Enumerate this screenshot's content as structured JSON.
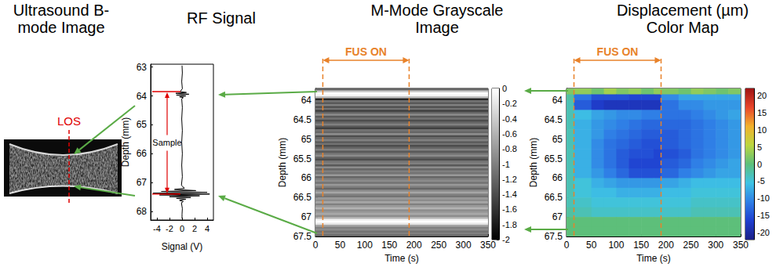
{
  "chart_data": [
    {
      "type": "image",
      "title": "Ultrasound B-mode Image",
      "annotation": "LOS"
    },
    {
      "type": "line",
      "title": "RF Signal",
      "xlabel": "Signal (V)",
      "ylabel": "Depth (mm)",
      "xlim": [
        -5,
        5
      ],
      "xticks": [
        -4,
        -2,
        0,
        2,
        4
      ],
      "ylim": [
        62.9,
        68.3
      ],
      "yticks": [
        63,
        64,
        65,
        66,
        67,
        68
      ],
      "color": "#000000",
      "grid": false,
      "x": [
        0,
        0.05,
        -0.05,
        0.05,
        -0.3,
        0.7,
        -1.0,
        1.1,
        -0.9,
        0.6,
        -0.4,
        0.2,
        -0.05,
        0.05,
        -0.05,
        0.05,
        -0.05,
        0.05,
        -0.05,
        0.05,
        -0.1,
        0.4,
        -1.2,
        2.2,
        -3.3,
        4.0,
        -4.6,
        4.4,
        -3.6,
        2.8,
        -2.0,
        1.4,
        -0.9,
        0.6,
        -0.4,
        0.2,
        -0.1,
        0.05,
        0,
        0
      ],
      "y": [
        62.95,
        63.2,
        63.5,
        63.75,
        63.85,
        63.88,
        63.91,
        63.94,
        63.97,
        64.0,
        64.03,
        64.06,
        64.1,
        64.4,
        64.8,
        65.2,
        65.6,
        66.0,
        66.4,
        66.8,
        67.1,
        67.2,
        67.24,
        67.28,
        67.31,
        67.34,
        67.37,
        67.4,
        67.43,
        67.46,
        67.49,
        67.52,
        67.55,
        67.58,
        67.62,
        67.66,
        67.7,
        67.9,
        68.1,
        68.25
      ],
      "sample": {
        "label": "Sample",
        "from": 63.85,
        "to": 67.4
      }
    },
    {
      "type": "heatmap",
      "title": "M-Mode Grayscale Image",
      "color": "gray",
      "grid": false,
      "xlabel": "Time (s)",
      "ylabel": "Depth (mm)",
      "xlim": [
        0,
        350
      ],
      "xticks": [
        0,
        50,
        100,
        150,
        200,
        250,
        300,
        350
      ],
      "ylim": [
        63.7,
        67.5
      ],
      "yticks": [
        64,
        64.5,
        65,
        65.5,
        66,
        66.5,
        67,
        67.5
      ],
      "time_edges": [
        0,
        350
      ],
      "depth_edges": [
        63.7,
        63.75,
        63.8,
        63.85,
        63.9,
        63.95,
        64,
        64.05,
        64.1,
        64.15,
        64.2,
        64.25,
        64.3,
        64.35,
        64.4,
        64.45,
        64.5,
        64.55,
        64.6,
        64.65,
        64.7,
        64.75,
        64.8,
        64.85,
        64.9,
        64.95,
        65,
        65.05,
        65.1,
        65.15,
        65.2,
        65.25,
        65.3,
        65.35,
        65.4,
        65.45,
        65.5,
        65.55,
        65.6,
        65.65,
        65.7,
        65.75,
        65.8,
        65.85,
        65.9,
        65.95,
        66,
        66.05,
        66.1,
        66.15,
        66.2,
        66.25,
        66.3,
        66.35,
        66.4,
        66.45,
        66.5,
        66.55,
        66.6,
        66.65,
        66.7,
        66.75,
        66.8,
        66.85,
        66.9,
        66.95,
        67,
        67.05,
        67.1,
        67.15,
        67.2,
        67.25,
        67.3,
        67.35,
        67.4,
        67.45,
        67.5
      ],
      "cells": [
        [
          -1.2
        ],
        [
          -0.4
        ],
        [
          0
        ],
        [
          -0.1
        ],
        [
          -0.5
        ],
        [
          -1.7
        ],
        [
          -1.1
        ],
        [
          -1.3
        ],
        [
          -1.0
        ],
        [
          -1.4
        ],
        [
          -1.1
        ],
        [
          -1.5
        ],
        [
          -1.2
        ],
        [
          -0.9
        ],
        [
          -1.3
        ],
        [
          -1.1
        ],
        [
          -1.4
        ],
        [
          -1.2
        ],
        [
          -1.0
        ],
        [
          -1.3
        ],
        [
          -1.5
        ],
        [
          -1.1
        ],
        [
          -1.2
        ],
        [
          -0.9
        ],
        [
          -1.4
        ],
        [
          -1.2
        ],
        [
          -1.0
        ],
        [
          -1.3
        ],
        [
          -1.1
        ],
        [
          -1.4
        ],
        [
          -1.2
        ],
        [
          -1.0
        ],
        [
          -1.3
        ],
        [
          -1.1
        ],
        [
          -0.9
        ],
        [
          -1.2
        ],
        [
          -1.4
        ],
        [
          -1.1
        ],
        [
          -1.0
        ],
        [
          -1.3
        ],
        [
          -0.9
        ],
        [
          -1.2
        ],
        [
          -1.0
        ],
        [
          -1.1
        ],
        [
          -0.8
        ],
        [
          -1.2
        ],
        [
          -1.0
        ],
        [
          -0.9
        ],
        [
          -1.1
        ],
        [
          -0.8
        ],
        [
          -1.0
        ],
        [
          -1.2
        ],
        [
          -0.9
        ],
        [
          -0.7
        ],
        [
          -1.0
        ],
        [
          -1.1
        ],
        [
          -0.8
        ],
        [
          -0.9
        ],
        [
          -0.7
        ],
        [
          -1.0
        ],
        [
          -0.8
        ],
        [
          -0.6
        ],
        [
          -0.9
        ],
        [
          -0.8
        ],
        [
          -0.7
        ],
        [
          -0.9
        ],
        [
          -0.6
        ],
        [
          -0.1
        ],
        [
          0
        ],
        [
          -0.2
        ],
        [
          -0.7
        ],
        [
          -1.0
        ],
        [
          -0.9
        ],
        [
          -1.1
        ],
        [
          -1.0
        ],
        [
          -1.2
        ]
      ],
      "colorbar": {
        "range": [
          -2,
          0
        ],
        "ticks": [
          0,
          -0.2,
          -0.4,
          -0.6,
          -0.8,
          -1,
          -1.2,
          -1.4,
          -1.6,
          -1.8,
          -2
        ]
      },
      "annotation": {
        "label": "FUS ON",
        "start": 15,
        "end": 190
      }
    },
    {
      "type": "heatmap",
      "title": "Displacement (µm) Color Map",
      "color": "jet",
      "grid": false,
      "xlabel": "Time (s)",
      "ylabel": "Depth (mm)",
      "xlim": [
        0,
        350
      ],
      "xticks": [
        0,
        50,
        100,
        150,
        200,
        250,
        300,
        350
      ],
      "ylim": [
        63.7,
        67.5
      ],
      "yticks": [
        64,
        64.5,
        65,
        65.5,
        66,
        66.5,
        67,
        67.5
      ],
      "time_edges": [
        0,
        15,
        50,
        75,
        100,
        125,
        150,
        175,
        190,
        225,
        250,
        275,
        300,
        325,
        350
      ],
      "depth_edges": [
        63.7,
        63.85,
        64.0,
        64.25,
        64.5,
        64.75,
        65.0,
        65.25,
        65.5,
        65.75,
        66.0,
        66.25,
        66.5,
        66.75,
        67.0,
        67.25,
        67.5
      ],
      "cells": [
        [
          2,
          3,
          1,
          4,
          2,
          3,
          1,
          3,
          2,
          1,
          3,
          2,
          1,
          2
        ],
        [
          -2,
          -12,
          -15,
          -15,
          -15,
          -16,
          -16,
          -16,
          -10,
          -8,
          -8,
          -8,
          -8,
          -8
        ],
        [
          -3,
          -14,
          -17,
          -18,
          -18,
          -18,
          -18,
          -18,
          -12,
          -10,
          -10,
          -9,
          -9,
          -9
        ],
        [
          -3,
          -6,
          -8,
          -9,
          -10,
          -10,
          -11,
          -11,
          -12,
          -12,
          -11,
          -10,
          -9,
          -8
        ],
        [
          -3,
          -7,
          -9,
          -10,
          -11,
          -12,
          -13,
          -13,
          -13,
          -13,
          -12,
          -11,
          -10,
          -9
        ],
        [
          -3,
          -7,
          -9,
          -11,
          -12,
          -13,
          -14,
          -14,
          -14,
          -13,
          -12,
          -11,
          -10,
          -9
        ],
        [
          -3,
          -7,
          -10,
          -12,
          -13,
          -14,
          -15,
          -15,
          -14,
          -13,
          -12,
          -11,
          -10,
          -9
        ],
        [
          -3,
          -7,
          -10,
          -12,
          -14,
          -15,
          -15,
          -16,
          -15,
          -14,
          -12,
          -11,
          -10,
          -9
        ],
        [
          -3,
          -7,
          -10,
          -12,
          -14,
          -16,
          -16,
          -16,
          -14,
          -13,
          -11,
          -10,
          -9,
          -8
        ],
        [
          -3,
          -7,
          -9,
          -11,
          -13,
          -15,
          -15,
          -15,
          -13,
          -11,
          -10,
          -9,
          -8,
          -8
        ],
        [
          -3,
          -5,
          -7,
          -8,
          -9,
          -9,
          -9,
          -9,
          -8,
          -7,
          -6,
          -6,
          -6,
          -6
        ],
        [
          -3,
          -5,
          -6,
          -6,
          -7,
          -7,
          -7,
          -7,
          -6,
          -6,
          -5,
          -5,
          -5,
          -5
        ],
        [
          -3,
          -4,
          -5,
          -5,
          -5,
          -5,
          -5,
          -5,
          -5,
          -5,
          -4,
          -4,
          -4,
          -4
        ],
        [
          -2,
          -3,
          -4,
          -4,
          -4,
          -4,
          -4,
          -4,
          -4,
          -4,
          -3,
          -3,
          -3,
          -3
        ],
        [
          0,
          0,
          0,
          0,
          0,
          0,
          0,
          0,
          0,
          0,
          0,
          0,
          0,
          0
        ],
        [
          0,
          0,
          0,
          0,
          0,
          0,
          0,
          0,
          0,
          0,
          0,
          0,
          0,
          0
        ]
      ],
      "colorbar": {
        "range": [
          -22,
          22
        ],
        "ticks": [
          20,
          15,
          10,
          5,
          0,
          -5,
          -10,
          -15,
          -20
        ]
      },
      "annotation": {
        "label": "FUS ON",
        "start": 15,
        "end": 190
      }
    }
  ]
}
